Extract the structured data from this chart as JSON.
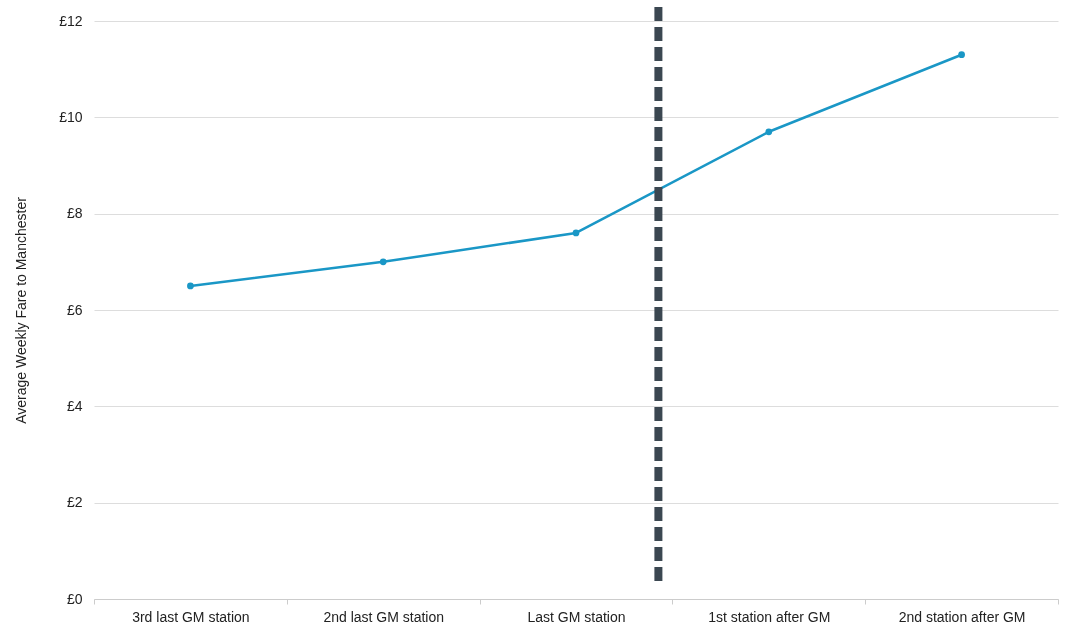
{
  "chart_data": {
    "type": "line",
    "ylabel": "Average Weekly Fare to Manchester",
    "categories": [
      "3rd last GM station",
      "2nd last GM station",
      "Last GM station",
      "1st station after GM",
      "2nd station after GM"
    ],
    "series": [
      {
        "color": "#1a97c6",
        "values": [
          6.5,
          7.0,
          7.6,
          9.7,
          11.3
        ]
      }
    ],
    "ylim": [
      0,
      12
    ],
    "yticks": [
      {
        "value": 0,
        "label": "£0"
      },
      {
        "value": 2,
        "label": "£2"
      },
      {
        "value": 4,
        "label": "£4"
      },
      {
        "value": 6,
        "label": "£6"
      },
      {
        "value": 8,
        "label": "£8"
      },
      {
        "value": 10,
        "label": "£10"
      },
      {
        "value": 12,
        "label": "£12"
      }
    ],
    "grid": "y",
    "marker": "circle",
    "line_style": "solid"
  }
}
